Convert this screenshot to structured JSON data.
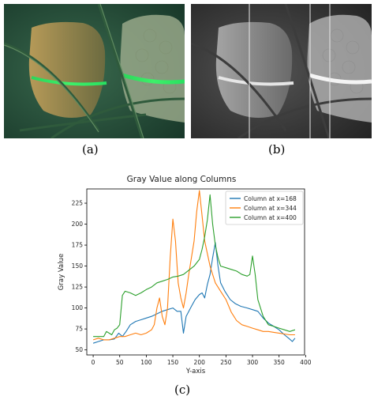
{
  "captions": {
    "a": "(a)",
    "b": "(b)",
    "c": "(c)"
  },
  "chart_data": {
    "type": "line",
    "title": "Gray Value along Columns",
    "xlabel": "Y-axis",
    "ylabel": "Gray Value",
    "xlim": [
      -12,
      398
    ],
    "ylim": [
      44,
      242
    ],
    "xticks": [
      0,
      50,
      100,
      150,
      200,
      250,
      300,
      350,
      400
    ],
    "yticks": [
      50,
      75,
      100,
      125,
      150,
      175,
      200,
      225
    ],
    "grid": false,
    "legend": "top-right",
    "series": [
      {
        "name": "Column at x=168",
        "color": "#1f77b4",
        "points": [
          [
            0,
            58
          ],
          [
            10,
            60
          ],
          [
            20,
            62
          ],
          [
            30,
            62
          ],
          [
            40,
            63
          ],
          [
            48,
            70
          ],
          [
            55,
            66
          ],
          [
            62,
            72
          ],
          [
            70,
            80
          ],
          [
            80,
            84
          ],
          [
            90,
            86
          ],
          [
            100,
            88
          ],
          [
            110,
            90
          ],
          [
            120,
            93
          ],
          [
            130,
            96
          ],
          [
            140,
            98
          ],
          [
            150,
            100
          ],
          [
            158,
            96
          ],
          [
            165,
            96
          ],
          [
            170,
            70
          ],
          [
            175,
            90
          ],
          [
            185,
            102
          ],
          [
            192,
            110
          ],
          [
            200,
            116
          ],
          [
            205,
            118
          ],
          [
            210,
            112
          ],
          [
            215,
            128
          ],
          [
            220,
            140
          ],
          [
            225,
            160
          ],
          [
            230,
            178
          ],
          [
            235,
            150
          ],
          [
            240,
            130
          ],
          [
            248,
            120
          ],
          [
            258,
            110
          ],
          [
            268,
            105
          ],
          [
            278,
            102
          ],
          [
            290,
            100
          ],
          [
            300,
            98
          ],
          [
            310,
            96
          ],
          [
            320,
            88
          ],
          [
            330,
            82
          ],
          [
            340,
            78
          ],
          [
            350,
            74
          ],
          [
            360,
            68
          ],
          [
            368,
            64
          ],
          [
            375,
            60
          ],
          [
            380,
            64
          ]
        ]
      },
      {
        "name": "Column at x=344",
        "color": "#ff7f0e",
        "points": [
          [
            0,
            62
          ],
          [
            10,
            64
          ],
          [
            20,
            62
          ],
          [
            30,
            62
          ],
          [
            40,
            64
          ],
          [
            50,
            66
          ],
          [
            60,
            66
          ],
          [
            70,
            68
          ],
          [
            80,
            70
          ],
          [
            90,
            68
          ],
          [
            100,
            70
          ],
          [
            110,
            74
          ],
          [
            115,
            80
          ],
          [
            120,
            100
          ],
          [
            125,
            112
          ],
          [
            130,
            90
          ],
          [
            135,
            80
          ],
          [
            140,
            100
          ],
          [
            145,
            160
          ],
          [
            150,
            206
          ],
          [
            155,
            180
          ],
          [
            160,
            130
          ],
          [
            165,
            112
          ],
          [
            170,
            100
          ],
          [
            175,
            118
          ],
          [
            180,
            140
          ],
          [
            185,
            160
          ],
          [
            190,
            180
          ],
          [
            195,
            215
          ],
          [
            200,
            240
          ],
          [
            205,
            210
          ],
          [
            210,
            180
          ],
          [
            215,
            165
          ],
          [
            220,
            150
          ],
          [
            225,
            140
          ],
          [
            230,
            130
          ],
          [
            240,
            120
          ],
          [
            250,
            110
          ],
          [
            260,
            95
          ],
          [
            270,
            85
          ],
          [
            280,
            80
          ],
          [
            290,
            78
          ],
          [
            300,
            76
          ],
          [
            310,
            74
          ],
          [
            320,
            72
          ],
          [
            330,
            72
          ],
          [
            340,
            71
          ],
          [
            350,
            70
          ],
          [
            360,
            69
          ],
          [
            370,
            68
          ],
          [
            380,
            68
          ]
        ]
      },
      {
        "name": "Column at x=400",
        "color": "#2ca02c",
        "points": [
          [
            0,
            66
          ],
          [
            10,
            66
          ],
          [
            20,
            66
          ],
          [
            25,
            72
          ],
          [
            30,
            70
          ],
          [
            35,
            68
          ],
          [
            40,
            74
          ],
          [
            45,
            76
          ],
          [
            50,
            80
          ],
          [
            55,
            115
          ],
          [
            60,
            120
          ],
          [
            70,
            118
          ],
          [
            80,
            115
          ],
          [
            90,
            118
          ],
          [
            100,
            122
          ],
          [
            110,
            125
          ],
          [
            120,
            130
          ],
          [
            130,
            132
          ],
          [
            140,
            134
          ],
          [
            150,
            137
          ],
          [
            160,
            138
          ],
          [
            170,
            140
          ],
          [
            180,
            145
          ],
          [
            190,
            150
          ],
          [
            200,
            158
          ],
          [
            205,
            170
          ],
          [
            210,
            185
          ],
          [
            215,
            205
          ],
          [
            220,
            235
          ],
          [
            225,
            200
          ],
          [
            230,
            175
          ],
          [
            235,
            160
          ],
          [
            240,
            150
          ],
          [
            250,
            148
          ],
          [
            260,
            146
          ],
          [
            270,
            144
          ],
          [
            280,
            140
          ],
          [
            290,
            138
          ],
          [
            295,
            140
          ],
          [
            300,
            162
          ],
          [
            305,
            140
          ],
          [
            310,
            110
          ],
          [
            320,
            90
          ],
          [
            330,
            80
          ],
          [
            340,
            78
          ],
          [
            350,
            76
          ],
          [
            360,
            74
          ],
          [
            370,
            72
          ],
          [
            380,
            74
          ]
        ]
      }
    ]
  }
}
